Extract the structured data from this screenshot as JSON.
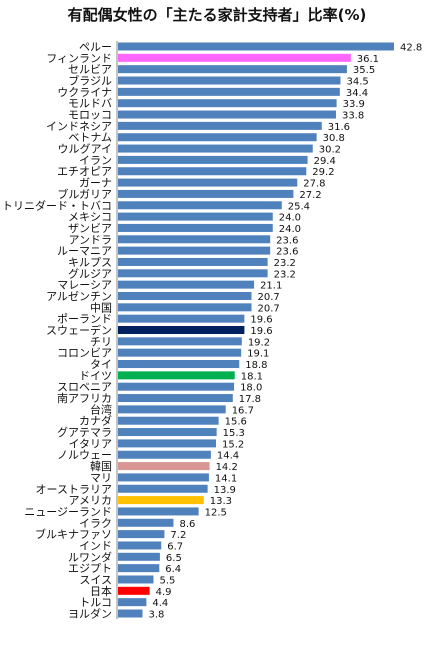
{
  "chart_data": {
    "type": "bar",
    "orientation": "horizontal",
    "title": "有配偶女性の「主たる家計支持者」比率(%)",
    "categories": [
      "ペルー",
      "フィンランド",
      "セルビア",
      "ブラジル",
      "ウクライナ",
      "モルドバ",
      "モロッコ",
      "インドネシア",
      "ベトナム",
      "ウルグアイ",
      "イラン",
      "エチオピア",
      "ガーナ",
      "ブルガリア",
      "トリニダード・トバコ",
      "メキシコ",
      "ザンビア",
      "アンドラ",
      "ルーマニア",
      "キルプス",
      "グルジア",
      "マレーシア",
      "アルゼンチン",
      "中国",
      "ポーランド",
      "スウェーデン",
      "チリ",
      "コロンビア",
      "タイ",
      "ドイツ",
      "スロベニア",
      "南アフリカ",
      "台湾",
      "カナダ",
      "グアテマラ",
      "イタリア",
      "ノルウェー",
      "韓国",
      "マリ",
      "オーストラリア",
      "アメリカ",
      "ニュージーランド",
      "イラク",
      "ブルキナファソ",
      "インド",
      "ルワンダ",
      "エジプト",
      "スイス",
      "日本",
      "トルコ",
      "ヨルダン"
    ],
    "values": [
      42.8,
      36.1,
      35.5,
      34.5,
      34.4,
      33.9,
      33.8,
      31.6,
      30.8,
      30.2,
      29.4,
      29.2,
      27.8,
      27.2,
      25.4,
      24.0,
      24.0,
      23.6,
      23.6,
      23.2,
      23.2,
      21.1,
      20.7,
      20.7,
      19.6,
      19.6,
      19.2,
      19.1,
      18.8,
      18.1,
      18.0,
      17.8,
      16.7,
      15.6,
      15.3,
      15.2,
      14.4,
      14.2,
      14.1,
      13.9,
      13.3,
      12.5,
      8.6,
      7.2,
      6.7,
      6.5,
      6.4,
      5.5,
      4.9,
      4.4,
      3.8
    ],
    "value_labels": [
      "42.8",
      "36.1",
      "35.5",
      "34.5",
      "34.4",
      "33.9",
      "33.8",
      "31.6",
      "30.8",
      "30.2",
      "29.4",
      "29.2",
      "27.8",
      "27.2",
      "25.4",
      "24.0",
      "24.0",
      "23.6",
      "23.6",
      "23.2",
      "23.2",
      "21.1",
      "20.7",
      "20.7",
      "19.6",
      "19.6",
      "19.2",
      "19.1",
      "18.8",
      "18.1",
      "18.0",
      "17.8",
      "16.7",
      "15.6",
      "15.3",
      "15.2",
      "14.4",
      "14.2",
      "14.1",
      "13.9",
      "13.3",
      "12.5",
      "8.6",
      "7.2",
      "6.7",
      "6.5",
      "6.4",
      "5.5",
      "4.9",
      "4.4",
      "3.8"
    ],
    "xlim": [
      0,
      42.8
    ],
    "grid": false,
    "legend": "none",
    "default_color": "#4f81bd",
    "highlights": {
      "フィンランド": "#ff66ff",
      "スウェーデン": "#002060",
      "ドイツ": "#00b050",
      "韓国": "#da9694",
      "アメリカ": "#ffc000",
      "日本": "#ff0000"
    }
  }
}
